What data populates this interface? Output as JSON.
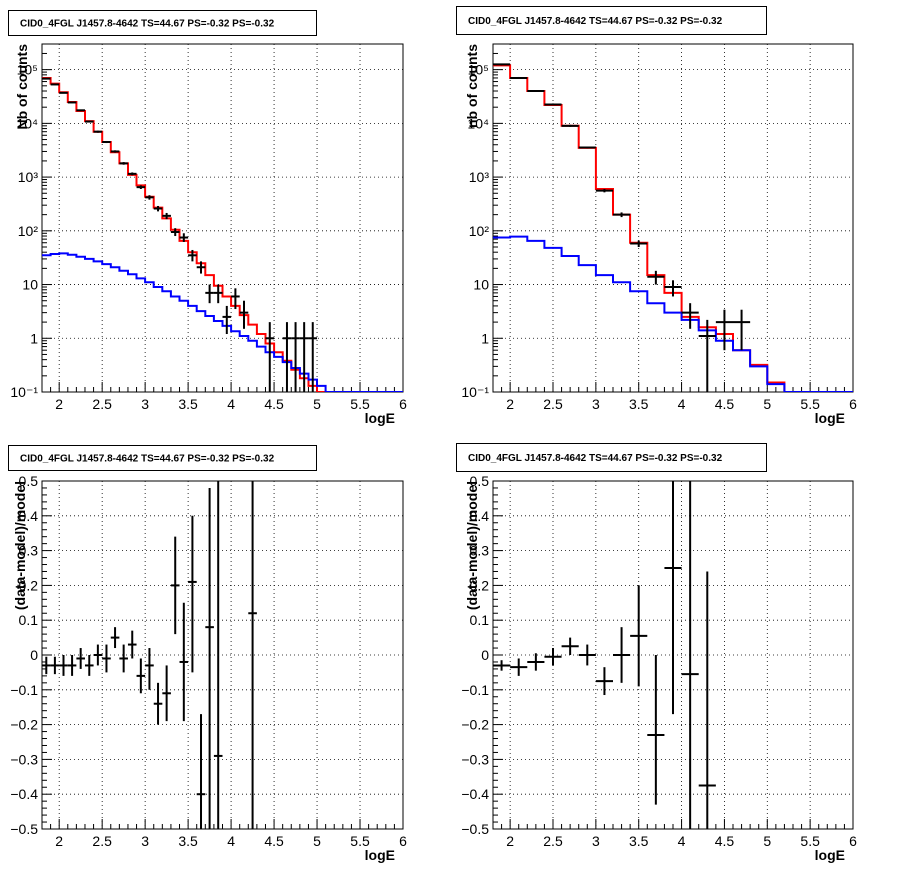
{
  "chart_data": [
    {
      "type": "line",
      "title": "CID0_4FGL J1457.8-4642 TS=44.67 PS=-0.32 PS=-0.32",
      "xlabel": "logE",
      "ylabel": "Nb of counts",
      "xlim": [
        1.8,
        6.0
      ],
      "ylim": [
        0.1,
        300000
      ],
      "yscale": "log",
      "grid": true,
      "x_ticks": [
        "2",
        "2.5",
        "3",
        "3.5",
        "4",
        "4.5",
        "5",
        "5.5",
        "6"
      ],
      "y_ticks": [
        "10⁻¹",
        "1",
        "10",
        "10²",
        "10³",
        "10⁴",
        "10⁵"
      ],
      "bin_edges": [
        1.8,
        1.9,
        2.0,
        2.1,
        2.2,
        2.3,
        2.4,
        2.5,
        2.6,
        2.7,
        2.8,
        2.9,
        3.0,
        3.1,
        3.2,
        3.3,
        3.4,
        3.5,
        3.6,
        3.7,
        3.8,
        3.9,
        4.0,
        4.1,
        4.2,
        4.3,
        4.4,
        4.5,
        4.6,
        4.7,
        4.8,
        4.9,
        5.0,
        5.1,
        5.2,
        5.3,
        5.4,
        5.5,
        5.6,
        5.7,
        5.8,
        5.9,
        6.0
      ],
      "series": [
        {
          "color": "#ff0000",
          "values": [
            70000,
            55000,
            38000,
            25000,
            17000,
            11000,
            7000,
            4500,
            2900,
            1800,
            1100,
            700,
            430,
            270,
            170,
            105,
            65,
            40,
            25,
            15,
            9.5,
            6,
            4,
            2.7,
            1.8,
            1.2,
            0.8,
            0.55,
            0.38,
            0.26,
            0.18,
            0.13,
            0.1,
            0.1,
            0.1,
            0.1,
            0.1,
            0.1,
            0.1,
            0.1,
            0.1,
            0.1
          ]
        },
        {
          "color": "#0000ff",
          "values": [
            35,
            37,
            38,
            36,
            33,
            30,
            27,
            24,
            21,
            18,
            15.5,
            13,
            11,
            9,
            7.5,
            6,
            5,
            4,
            3.2,
            2.6,
            2.1,
            1.7,
            1.35,
            1.1,
            0.9,
            0.7,
            0.55,
            0.45,
            0.36,
            0.28,
            0.22,
            0.17,
            0.13,
            0.1,
            0.1,
            0.1,
            0.1,
            0.1,
            0.1,
            0.1,
            0.1,
            0.1
          ]
        }
      ],
      "points": [
        {
          "x": 1.85,
          "y": 68000,
          "lo": 66000,
          "hi": 70000
        },
        {
          "x": 1.95,
          "y": 53000,
          "lo": 51500,
          "hi": 54500
        },
        {
          "x": 2.05,
          "y": 37000,
          "lo": 36000,
          "hi": 38000
        },
        {
          "x": 2.15,
          "y": 24500,
          "lo": 23800,
          "hi": 25200
        },
        {
          "x": 2.25,
          "y": 17500,
          "lo": 16900,
          "hi": 18100
        },
        {
          "x": 2.35,
          "y": 10800,
          "lo": 10400,
          "hi": 11200
        },
        {
          "x": 2.45,
          "y": 7000,
          "lo": 6700,
          "hi": 7300
        },
        {
          "x": 2.55,
          "y": 4500,
          "lo": 4300,
          "hi": 4700
        },
        {
          "x": 2.65,
          "y": 3000,
          "lo": 2850,
          "hi": 3150
        },
        {
          "x": 2.75,
          "y": 1800,
          "lo": 1700,
          "hi": 1900
        },
        {
          "x": 2.85,
          "y": 1150,
          "lo": 1080,
          "hi": 1220
        },
        {
          "x": 2.95,
          "y": 650,
          "lo": 600,
          "hi": 700
        },
        {
          "x": 3.05,
          "y": 420,
          "lo": 380,
          "hi": 460
        },
        {
          "x": 3.15,
          "y": 260,
          "lo": 230,
          "hi": 290
        },
        {
          "x": 3.25,
          "y": 190,
          "lo": 165,
          "hi": 215
        },
        {
          "x": 3.35,
          "y": 95,
          "lo": 80,
          "hi": 112
        },
        {
          "x": 3.45,
          "y": 75,
          "lo": 62,
          "hi": 90
        },
        {
          "x": 3.55,
          "y": 35,
          "lo": 27,
          "hi": 44
        },
        {
          "x": 3.65,
          "y": 21,
          "lo": 16,
          "hi": 27
        },
        {
          "x": 3.75,
          "y": 7,
          "lo": 4.5,
          "hi": 10
        },
        {
          "x": 3.85,
          "y": 7,
          "lo": 4.5,
          "hi": 10
        },
        {
          "x": 3.95,
          "y": 2.5,
          "lo": 1.2,
          "hi": 4
        },
        {
          "x": 4.05,
          "y": 6,
          "lo": 3.5,
          "hi": 8.5
        },
        {
          "x": 4.15,
          "y": 3,
          "lo": 1.5,
          "hi": 5
        },
        {
          "x": 4.45,
          "y": 1,
          "lo": 0.1,
          "hi": 2
        },
        {
          "x": 4.65,
          "y": 1,
          "lo": 0.1,
          "hi": 2
        },
        {
          "x": 4.75,
          "y": 1,
          "lo": 0.1,
          "hi": 2
        },
        {
          "x": 4.85,
          "y": 1,
          "lo": 0.1,
          "hi": 2
        },
        {
          "x": 4.95,
          "y": 1,
          "lo": 0.1,
          "hi": 2
        }
      ]
    },
    {
      "type": "line",
      "title": "CID0_4FGL J1457.8-4642 TS=44.67 PS=-0.32 PS=-0.32",
      "xlabel": "logE",
      "ylabel": "nb of counts",
      "xlim": [
        1.8,
        6.0
      ],
      "ylim": [
        0.1,
        300000
      ],
      "yscale": "log",
      "grid": true,
      "x_ticks": [
        "2",
        "2.5",
        "3",
        "3.5",
        "4",
        "4.5",
        "5",
        "5.5",
        "6"
      ],
      "y_ticks": [
        "10⁻¹",
        "1",
        "10",
        "10²",
        "10³",
        "10⁴",
        "10⁵"
      ],
      "bin_edges": [
        1.8,
        2.0,
        2.2,
        2.4,
        2.6,
        2.8,
        3.0,
        3.2,
        3.4,
        3.6,
        3.8,
        4.0,
        4.2,
        4.4,
        4.6,
        4.8,
        5.0,
        5.2,
        5.4,
        5.6,
        5.8,
        6.0
      ],
      "series": [
        {
          "color": "#ff0000",
          "values": [
            120000,
            70000,
            40000,
            22000,
            9000,
            3500,
            600,
            200,
            60,
            15,
            7,
            2.5,
            1.6,
            1.2,
            0.6,
            0.32,
            0.15,
            0.1,
            0.1,
            0.1,
            0.1
          ]
        },
        {
          "color": "#0000ff",
          "values": [
            75,
            78,
            65,
            48,
            34,
            23,
            15,
            11,
            7.5,
            4.5,
            3,
            2.2,
            1.4,
            0.9,
            0.6,
            0.3,
            0.14,
            0.1,
            0.1,
            0.1,
            0.1
          ]
        }
      ],
      "points": [
        {
          "x": 1.9,
          "y": 125000,
          "lo": 120000,
          "hi": 130000
        },
        {
          "x": 2.1,
          "y": 70000,
          "lo": 67000,
          "hi": 73000
        },
        {
          "x": 2.3,
          "y": 40000,
          "lo": 38500,
          "hi": 41500
        },
        {
          "x": 2.5,
          "y": 22500,
          "lo": 21500,
          "hi": 23500
        },
        {
          "x": 2.7,
          "y": 9000,
          "lo": 8600,
          "hi": 9400
        },
        {
          "x": 2.9,
          "y": 3550,
          "lo": 3400,
          "hi": 3700
        },
        {
          "x": 3.1,
          "y": 560,
          "lo": 520,
          "hi": 600
        },
        {
          "x": 3.3,
          "y": 200,
          "lo": 180,
          "hi": 220
        },
        {
          "x": 3.5,
          "y": 58,
          "lo": 50,
          "hi": 66
        },
        {
          "x": 3.7,
          "y": 14,
          "lo": 10,
          "hi": 18
        },
        {
          "x": 3.9,
          "y": 9,
          "lo": 6,
          "hi": 12
        },
        {
          "x": 4.1,
          "y": 3,
          "lo": 1.5,
          "hi": 4.5
        },
        {
          "x": 4.3,
          "y": 1.1,
          "lo": 0.1,
          "hi": 2.2
        },
        {
          "x": 4.5,
          "y": 2,
          "lo": 0.6,
          "hi": 3.4
        },
        {
          "x": 4.7,
          "y": 2,
          "lo": 0.6,
          "hi": 3.4
        }
      ]
    },
    {
      "type": "scatter",
      "title": "CID0_4FGL J1457.8-4642 TS=44.67 PS=-0.32 PS=-0.32",
      "xlabel": "logE",
      "ylabel": "(data-model)/model",
      "xlim": [
        1.8,
        6.0
      ],
      "ylim": [
        -0.5,
        0.5
      ],
      "grid": true,
      "x_ticks": [
        "2",
        "2.5",
        "3",
        "3.5",
        "4",
        "4.5",
        "5",
        "5.5",
        "6"
      ],
      "y_ticks": [
        "−0.5",
        "−0.4",
        "−0.3",
        "−0.2",
        "−0.1",
        "0",
        "0.1",
        "0.2",
        "0.3",
        "0.4",
        "0.5"
      ],
      "points": [
        {
          "x": 1.85,
          "y": -0.03,
          "lo": -0.055,
          "hi": -0.005
        },
        {
          "x": 1.95,
          "y": -0.03,
          "lo": -0.055,
          "hi": -0.005
        },
        {
          "x": 2.05,
          "y": -0.03,
          "lo": -0.06,
          "hi": 0.0
        },
        {
          "x": 2.15,
          "y": -0.03,
          "lo": -0.06,
          "hi": 0.0
        },
        {
          "x": 2.25,
          "y": -0.01,
          "lo": -0.04,
          "hi": 0.02
        },
        {
          "x": 2.35,
          "y": -0.03,
          "lo": -0.06,
          "hi": 0.0
        },
        {
          "x": 2.45,
          "y": 0.0,
          "lo": -0.03,
          "hi": 0.03
        },
        {
          "x": 2.55,
          "y": -0.01,
          "lo": -0.05,
          "hi": 0.03
        },
        {
          "x": 2.65,
          "y": 0.05,
          "lo": 0.02,
          "hi": 0.08
        },
        {
          "x": 2.75,
          "y": -0.01,
          "lo": -0.05,
          "hi": 0.03
        },
        {
          "x": 2.85,
          "y": 0.03,
          "lo": -0.01,
          "hi": 0.07
        },
        {
          "x": 2.95,
          "y": -0.06,
          "lo": -0.11,
          "hi": -0.01
        },
        {
          "x": 3.05,
          "y": -0.03,
          "lo": -0.1,
          "hi": 0.02
        },
        {
          "x": 3.15,
          "y": -0.14,
          "lo": -0.2,
          "hi": -0.08
        },
        {
          "x": 3.25,
          "y": -0.11,
          "lo": -0.19,
          "hi": -0.03
        },
        {
          "x": 3.35,
          "y": 0.2,
          "lo": 0.06,
          "hi": 0.34
        },
        {
          "x": 3.45,
          "y": -0.02,
          "lo": -0.19,
          "hi": 0.15
        },
        {
          "x": 3.55,
          "y": 0.21,
          "lo": -0.05,
          "hi": 0.4
        },
        {
          "x": 3.65,
          "y": -0.4,
          "lo": -0.5,
          "hi": -0.17
        },
        {
          "x": 3.75,
          "y": 0.08,
          "lo": -0.5,
          "hi": 0.48
        },
        {
          "x": 3.85,
          "y": -0.29,
          "lo": -0.5,
          "hi": 0.5
        },
        {
          "x": 4.25,
          "y": 0.12,
          "lo": -0.5,
          "hi": 0.5
        }
      ]
    },
    {
      "type": "scatter",
      "title": "CID0_4FGL J1457.8-4642 TS=44.67 PS=-0.32 PS=-0.32",
      "xlabel": "logE",
      "ylabel": "(data-model)/model",
      "xlim": [
        1.8,
        6.0
      ],
      "ylim": [
        -0.5,
        0.5
      ],
      "grid": true,
      "x_ticks": [
        "2",
        "2.5",
        "3",
        "3.5",
        "4",
        "4.5",
        "5",
        "5.5",
        "6"
      ],
      "y_ticks": [
        "−0.5",
        "−0.4",
        "−0.3",
        "−0.2",
        "−0.1",
        "0",
        "0.1",
        "0.2",
        "0.3",
        "0.4",
        "0.5"
      ],
      "points": [
        {
          "x": 1.9,
          "y": -0.03,
          "lo": -0.045,
          "hi": -0.015
        },
        {
          "x": 2.1,
          "y": -0.035,
          "lo": -0.06,
          "hi": -0.01
        },
        {
          "x": 2.3,
          "y": -0.02,
          "lo": -0.045,
          "hi": 0.005
        },
        {
          "x": 2.5,
          "y": -0.005,
          "lo": -0.03,
          "hi": 0.02
        },
        {
          "x": 2.7,
          "y": 0.025,
          "lo": 0.0,
          "hi": 0.05
        },
        {
          "x": 2.9,
          "y": 0.0,
          "lo": -0.03,
          "hi": 0.03
        },
        {
          "x": 3.1,
          "y": -0.075,
          "lo": -0.115,
          "hi": -0.035
        },
        {
          "x": 3.3,
          "y": 0.0,
          "lo": -0.08,
          "hi": 0.08
        },
        {
          "x": 3.5,
          "y": 0.055,
          "lo": -0.09,
          "hi": 0.2
        },
        {
          "x": 3.7,
          "y": -0.23,
          "lo": -0.43,
          "hi": 0.0
        },
        {
          "x": 3.9,
          "y": 0.25,
          "lo": -0.17,
          "hi": 0.5
        },
        {
          "x": 4.1,
          "y": -0.055,
          "lo": -0.5,
          "hi": 0.5
        },
        {
          "x": 4.3,
          "y": -0.375,
          "lo": -0.5,
          "hi": 0.24
        }
      ]
    }
  ]
}
